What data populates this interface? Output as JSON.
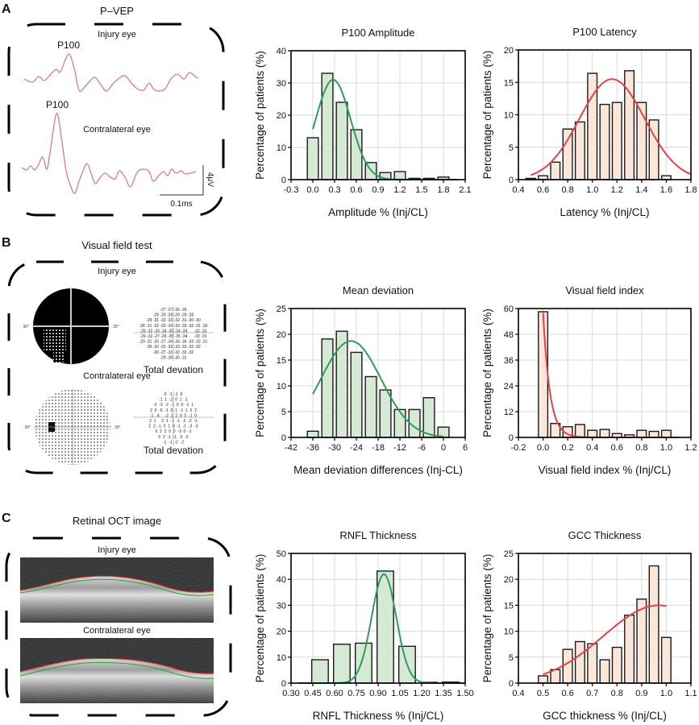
{
  "panels": {
    "A": {
      "letter": "A",
      "title": "P–VEP",
      "injury_label": "Injury eye",
      "contra_label": "Contralateral eye",
      "peak_label_injury": "P100",
      "peak_label_contra": "P100",
      "scale_v": "4μV",
      "scale_t": "0.1ms"
    },
    "B": {
      "letter": "B",
      "title": "Visual field test",
      "injury_label": "Injury eye",
      "contra_label": "Contralateral eye",
      "deg_label": "30°",
      "total_dev_injury": "Total devation",
      "total_dev_contra": "Total devation",
      "injury_grid": [
        "-27 -27 -26 -26",
        "-29 -29 -29 -29 -29 -28",
        "-29 -31 -32 -32 -32 -31 -30 -30",
        "-28 -31 -32 -33 -34 -33 -33 -32 -31 -30",
        "-29 -32 -33 -34 -35 -34 -34      -32 -31",
        "-29 -32 -27 -26 -35 -35 -34      -32 -31",
        "-29 -31 -25 -27 -34 -34 -34 -33 -32 -31",
        "-30 -32 -31 -33 -33 -33 -32 -32",
        "-30 -27 -32 -32 -32 -32",
        "-29 -30 -30 -31"
      ],
      "contra_grid": [
        "0  -1  -1  0",
        "-1  1  -2  0  1  -1",
        "-2  -3  -2  -1  0  0  -1  1",
        "2  0  -6  -1  0  1  -1  1  0  2",
        "-1  -4     -2  1  2  0  0  -1  0",
        "2  1     2  1  -1  -1  -2  -2  -1",
        "2  2  -1  0  1  0  -1  -1  -3  -3",
        "0  2  2  0  0  -3  0  -1",
        "0  2  -1  -1  -3  -2",
        "-1  -1  -2  -2"
      ]
    },
    "C": {
      "letter": "C",
      "title": "Retinal OCT image",
      "injury_label": "Injury eye",
      "contra_label": "Contralateral eye"
    }
  },
  "colors": {
    "green_bar": "#d6e9d5",
    "green_fit": "#2f9a60",
    "orange_bar": "#fbe6da",
    "red_fit": "#e5414b",
    "bar_edge": "#1a1a1a",
    "grid": "#d9d9d9"
  },
  "chart_data": [
    {
      "type": "bar",
      "title": "P100 Amplitude",
      "xlabel": "Amplitude % (Inj/CL)",
      "ylabel": "Percentage of patients (%)",
      "x": [
        0.0,
        0.2,
        0.4,
        0.6,
        0.8,
        1.0,
        1.2,
        1.4,
        1.6,
        1.8
      ],
      "values": [
        13,
        33,
        24,
        15.5,
        5.3,
        2.2,
        2.5,
        0.4,
        0.4,
        0.8
      ],
      "xlim": [
        -0.3,
        2.1
      ],
      "ylim": [
        0,
        40
      ],
      "xticks": [
        "-0.3",
        "0.0",
        "0.3",
        "0.6",
        "0.9",
        "1.2",
        "1.5",
        "1.8",
        "2.1"
      ],
      "yticks": [
        "0",
        "10",
        "20",
        "30",
        "40"
      ],
      "bar_color": "green",
      "fit": {
        "type": "normal",
        "peak": 31,
        "mean": 0.28,
        "sd": 0.24,
        "range": [
          0,
          2.0
        ],
        "color": "green"
      },
      "grid": true
    },
    {
      "type": "bar",
      "title": "P100 Latency",
      "xlabel": "Latency % (Inj/CL)",
      "ylabel": "Percentage of patients (%)",
      "x": [
        0.5,
        0.6,
        0.7,
        0.8,
        0.9,
        1.0,
        1.1,
        1.2,
        1.3,
        1.4,
        1.5,
        1.6
      ],
      "values": [
        0.2,
        0.6,
        2.7,
        7.8,
        8.9,
        16.4,
        11.6,
        11.9,
        16.8,
        11.9,
        9.2,
        0.6
      ],
      "xlim": [
        0.4,
        1.8
      ],
      "ylim": [
        0,
        20
      ],
      "xticks": [
        "0.4",
        "0.6",
        "0.8",
        "1.0",
        "1.2",
        "1.4",
        "1.6",
        "1.8"
      ],
      "yticks": [
        "0",
        "5",
        "10",
        "15",
        "20"
      ],
      "bar_color": "orange",
      "fit": {
        "type": "normal",
        "peak": 15.5,
        "mean": 1.16,
        "sd": 0.265,
        "range": [
          0.5,
          1.8
        ],
        "color": "red"
      },
      "grid": true
    },
    {
      "type": "bar",
      "title": "Mean deviation",
      "xlabel": "Mean deviation differences (Inj-CL)",
      "ylabel": "Percentage of patients (%)",
      "x": [
        -36,
        -32,
        -28,
        -24,
        -20,
        -16,
        -12,
        -8,
        -4,
        0
      ],
      "values": [
        1.2,
        19.1,
        20.6,
        16.5,
        11.8,
        9.2,
        5.4,
        5.4,
        7.7,
        2.0
      ],
      "xlim": [
        -42,
        6
      ],
      "ylim": [
        0,
        25
      ],
      "xticks": [
        "-42",
        "-36",
        "-30",
        "-24",
        "-18",
        "-12",
        "-6",
        "0",
        "6"
      ],
      "yticks": [
        "0",
        "5",
        "10",
        "15",
        "20",
        "25"
      ],
      "bar_color": "green",
      "fit": {
        "type": "normal",
        "peak": 18.7,
        "mean": -25.5,
        "sd": 8.3,
        "range": [
          -36,
          0
        ],
        "color": "green"
      },
      "grid": true
    },
    {
      "type": "bar",
      "title": "Visual field index",
      "xlabel": "Visual field index % (Inj/CL)",
      "ylabel": "Percentage of patients (%)",
      "x": [
        0.0,
        0.1,
        0.2,
        0.3,
        0.4,
        0.5,
        0.6,
        0.7,
        0.8,
        0.9,
        1.0
      ],
      "values": [
        58.5,
        6.5,
        5,
        6,
        3.3,
        3.7,
        1.8,
        1.2,
        3.3,
        2.8,
        3.3
      ],
      "xlim": [
        -0.2,
        1.2
      ],
      "ylim": [
        0,
        60
      ],
      "xticks": [
        "-0.2",
        "0.0",
        "0.2",
        "0.4",
        "0.6",
        "0.8",
        "1.0",
        "1.2"
      ],
      "yticks": [
        "0",
        "12",
        "24",
        "36",
        "48",
        "60"
      ],
      "bar_color": "orange",
      "fit": {
        "type": "exponential",
        "peak": 58,
        "scale": 0.055,
        "range": [
          0,
          1.1
        ],
        "color": "red"
      },
      "grid": true
    },
    {
      "type": "bar",
      "title": "RNFL Thickness",
      "xlabel": "RNFL Thickness % (Inj/CL)",
      "ylabel": "Percentage of patients (%)",
      "x": [
        0.5,
        0.65,
        0.8,
        0.95,
        1.1,
        1.25,
        1.4
      ],
      "values": [
        9,
        15,
        15.4,
        43.2,
        14.2,
        0.3,
        0.4
      ],
      "xlim": [
        0.3,
        1.5
      ],
      "ylim": [
        0,
        50
      ],
      "xticks": [
        "0.30",
        "0.45",
        "0.60",
        "0.75",
        "0.90",
        "1.05",
        "1.20",
        "1.35",
        "1.50"
      ],
      "yticks": [
        "0",
        "10",
        "20",
        "30",
        "40",
        "50"
      ],
      "bar_color": "green",
      "fit": {
        "type": "normal",
        "peak": 42,
        "mean": 0.94,
        "sd": 0.085,
        "range": [
          0.35,
          1.5
        ],
        "color": "green"
      },
      "grid": true
    },
    {
      "type": "bar",
      "title": "GCC Thickness",
      "xlabel": "GCC thickness % (Inj/CL)",
      "ylabel": "Percentage of patients (%)",
      "x": [
        0.5,
        0.55,
        0.6,
        0.65,
        0.7,
        0.75,
        0.8,
        0.85,
        0.9,
        0.95,
        1.0
      ],
      "values": [
        1.4,
        2.6,
        6.5,
        8,
        7.6,
        4.5,
        6.9,
        13.1,
        16.2,
        22.6,
        8.8
      ],
      "xlim": [
        0.4,
        1.1
      ],
      "ylim": [
        0,
        25
      ],
      "xticks": [
        "0.4",
        "0.5",
        "0.6",
        "0.7",
        "0.8",
        "0.9",
        "1.0",
        "1.1"
      ],
      "yticks": [
        "0",
        "5",
        "10",
        "15",
        "20",
        "25"
      ],
      "bar_color": "orange",
      "fit": {
        "type": "normal",
        "peak": 15,
        "mean": 0.97,
        "sd": 0.225,
        "range": [
          0.5,
          1.0
        ],
        "color": "red"
      },
      "grid": true
    }
  ]
}
